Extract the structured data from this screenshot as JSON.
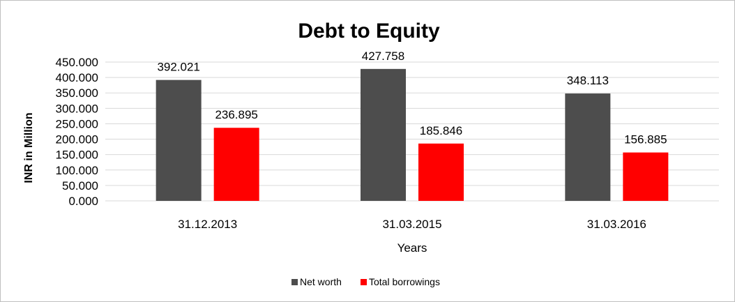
{
  "chart_data": {
    "type": "bar",
    "title": "Debt to Equity",
    "xlabel": "Years",
    "ylabel": "INR in Million",
    "categories": [
      "31.12.2013",
      "31.03.2015",
      "31.03.2016"
    ],
    "series": [
      {
        "name": "Net worth",
        "values": [
          392.021,
          427.758,
          348.113
        ],
        "color": "#4d4d4d"
      },
      {
        "name": "Total borrowings",
        "values": [
          236.895,
          185.846,
          156.885
        ],
        "color": "#ff0000"
      }
    ],
    "ylim": [
      0,
      450
    ],
    "yticks": [
      "0.000",
      "50.000",
      "100.000",
      "150.000",
      "200.000",
      "250.000",
      "300.000",
      "350.000",
      "400.000",
      "450.000"
    ],
    "data_labels": [
      [
        "392.021",
        "427.758",
        "348.113"
      ],
      [
        "236.895",
        "185.846",
        "156.885"
      ]
    ],
    "grid": true,
    "legend_position": "bottom"
  }
}
